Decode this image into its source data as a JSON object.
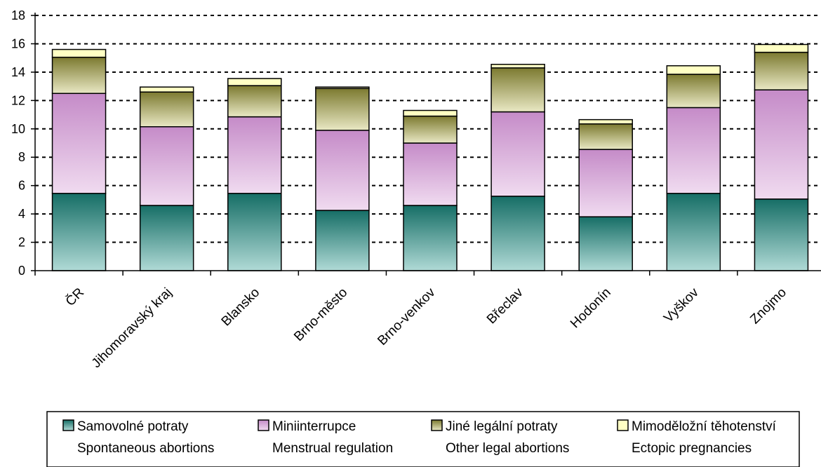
{
  "chart_data": {
    "type": "bar",
    "stacked": true,
    "categories": [
      "ČR",
      "Jihomoravský kraj",
      "Blansko",
      "Brno-město",
      "Brno-venkov",
      "Břeclav",
      "Hodonín",
      "Vyškov",
      "Znojmo"
    ],
    "series": [
      {
        "name": "Samovolné potraty",
        "name_en": "Spontaneous abortions",
        "values": [
          5.45,
          4.6,
          5.45,
          4.25,
          4.6,
          5.25,
          3.8,
          5.45,
          5.05
        ]
      },
      {
        "name": "Miniinterrupce",
        "name_en": "Menstrual regulation",
        "values": [
          7.05,
          5.55,
          5.4,
          5.65,
          4.4,
          5.95,
          4.75,
          6.05,
          7.7
        ]
      },
      {
        "name": "Jiné legální potraty",
        "name_en": "Other legal abortions",
        "values": [
          2.55,
          2.45,
          2.2,
          2.95,
          1.9,
          3.1,
          1.8,
          2.35,
          2.65
        ]
      },
      {
        "name": "Mimoděložní těhotenství",
        "name_en": "Ectopic pregnancies",
        "values": [
          0.55,
          0.35,
          0.5,
          0.1,
          0.4,
          0.25,
          0.3,
          0.6,
          0.55
        ]
      }
    ],
    "ylim": [
      0,
      18
    ],
    "yticks": [
      0,
      2,
      4,
      6,
      8,
      10,
      12,
      14,
      16,
      18
    ],
    "grid": "horizontal-dashed",
    "legend": "bottom",
    "colors": {
      "samovolne_top": "#166e66",
      "samovolne_bottom": "#b0dad6",
      "mini_top": "#c58bc8",
      "mini_bottom": "#f0dbf0",
      "jine_top": "#7c7a30",
      "jine_bottom": "#e9e8c4",
      "mimo": "#ffffc4"
    }
  }
}
